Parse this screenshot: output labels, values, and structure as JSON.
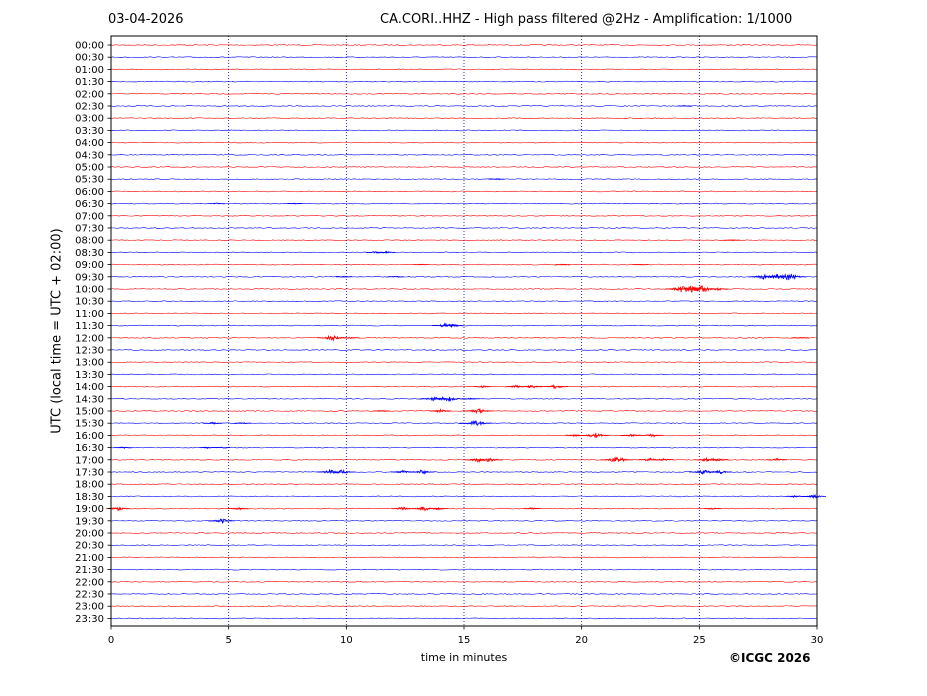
{
  "header": {
    "date": "03-04-2026",
    "title": "CA.CORI..HHZ - High pass filtered @2Hz - Amplification: 1/1000"
  },
  "footer": {
    "copyright": "©ICGC 2026"
  },
  "chart_data": {
    "type": "line",
    "title": "CA.CORI..HHZ - High pass filtered @2Hz - Amplification: 1/1000",
    "xlabel": "time in minutes",
    "ylabel": "UTC (local time = UTC + 02:00)",
    "xlim": [
      0,
      30
    ],
    "xticks": [
      0,
      5,
      10,
      15,
      20,
      25,
      30
    ],
    "grid_x": true,
    "trace_colors": [
      "#ff0000",
      "#0000ff"
    ],
    "rows": [
      "00:00",
      "00:30",
      "01:00",
      "01:30",
      "02:00",
      "02:30",
      "03:00",
      "03:30",
      "04:00",
      "04:30",
      "05:00",
      "05:30",
      "06:00",
      "06:30",
      "07:00",
      "07:30",
      "08:00",
      "08:30",
      "09:00",
      "09:30",
      "10:00",
      "10:30",
      "11:00",
      "11:30",
      "12:00",
      "12:30",
      "13:00",
      "13:30",
      "14:00",
      "14:30",
      "15:00",
      "15:30",
      "16:00",
      "16:30",
      "17:00",
      "17:30",
      "18:00",
      "18:30",
      "19:00",
      "19:30",
      "20:00",
      "20:30",
      "21:00",
      "21:30",
      "22:00",
      "22:30",
      "23:00",
      "23:30"
    ],
    "events": [
      {
        "row": "02:30",
        "minute": 24.4,
        "amp": 0.6
      },
      {
        "row": "05:30",
        "minute": 16.4,
        "amp": 0.8
      },
      {
        "row": "06:30",
        "minute": 4.5,
        "amp": 0.6
      },
      {
        "row": "06:30",
        "minute": 7.8,
        "amp": 0.6
      },
      {
        "row": "08:00",
        "minute": 26.4,
        "amp": 0.8
      },
      {
        "row": "08:30",
        "minute": 11.3,
        "amp": 1.5
      },
      {
        "row": "08:30",
        "minute": 11.7,
        "amp": 1.2
      },
      {
        "row": "09:00",
        "minute": 13.2,
        "amp": 0.6
      },
      {
        "row": "09:00",
        "minute": 19.2,
        "amp": 0.6
      },
      {
        "row": "09:00",
        "minute": 22.5,
        "amp": 0.6
      },
      {
        "row": "09:30",
        "minute": 9.9,
        "amp": 0.8
      },
      {
        "row": "09:30",
        "minute": 12.1,
        "amp": 0.8
      },
      {
        "row": "09:30",
        "minute": 27.8,
        "amp": 3.5
      },
      {
        "row": "09:30",
        "minute": 28.3,
        "amp": 3.0
      },
      {
        "row": "09:30",
        "minute": 28.8,
        "amp": 4.0
      },
      {
        "row": "10:00",
        "minute": 24.3,
        "amp": 4.0
      },
      {
        "row": "10:00",
        "minute": 24.7,
        "amp": 3.5
      },
      {
        "row": "10:00",
        "minute": 25.1,
        "amp": 4.0
      },
      {
        "row": "10:00",
        "minute": 25.8,
        "amp": 1.5
      },
      {
        "row": "11:30",
        "minute": 14.2,
        "amp": 2.5
      },
      {
        "row": "11:30",
        "minute": 14.5,
        "amp": 2.0
      },
      {
        "row": "12:00",
        "minute": 9.4,
        "amp": 3.0
      },
      {
        "row": "12:00",
        "minute": 10.2,
        "amp": 1.0
      },
      {
        "row": "12:00",
        "minute": 29.3,
        "amp": 1.0
      },
      {
        "row": "14:00",
        "minute": 15.8,
        "amp": 1.2
      },
      {
        "row": "14:00",
        "minute": 17.2,
        "amp": 1.5
      },
      {
        "row": "14:00",
        "minute": 17.9,
        "amp": 1.8
      },
      {
        "row": "14:00",
        "minute": 18.9,
        "amp": 2.2
      },
      {
        "row": "14:30",
        "minute": 13.7,
        "amp": 2.5
      },
      {
        "row": "14:30",
        "minute": 14.3,
        "amp": 3.5
      },
      {
        "row": "14:30",
        "minute": 15.3,
        "amp": 1.0
      },
      {
        "row": "15:00",
        "minute": 11.5,
        "amp": 1.0
      },
      {
        "row": "15:00",
        "minute": 14.0,
        "amp": 1.8
      },
      {
        "row": "15:00",
        "minute": 15.6,
        "amp": 3.0
      },
      {
        "row": "15:30",
        "minute": 4.3,
        "amp": 1.2
      },
      {
        "row": "15:30",
        "minute": 5.6,
        "amp": 0.8
      },
      {
        "row": "15:30",
        "minute": 15.5,
        "amp": 3.5
      },
      {
        "row": "16:00",
        "minute": 19.7,
        "amp": 1.2
      },
      {
        "row": "16:00",
        "minute": 20.6,
        "amp": 3.0
      },
      {
        "row": "16:00",
        "minute": 22.1,
        "amp": 1.5
      },
      {
        "row": "16:00",
        "minute": 23.0,
        "amp": 2.0
      },
      {
        "row": "16:30",
        "minute": 0.5,
        "amp": 1.0
      },
      {
        "row": "16:30",
        "minute": 4.1,
        "amp": 1.0
      },
      {
        "row": "16:30",
        "minute": 4.7,
        "amp": 0.8
      },
      {
        "row": "17:00",
        "minute": 15.6,
        "amp": 2.5
      },
      {
        "row": "17:00",
        "minute": 16.1,
        "amp": 2.5
      },
      {
        "row": "17:00",
        "minute": 21.5,
        "amp": 3.5
      },
      {
        "row": "17:00",
        "minute": 22.9,
        "amp": 2.0
      },
      {
        "row": "17:00",
        "minute": 23.5,
        "amp": 1.5
      },
      {
        "row": "17:00",
        "minute": 25.3,
        "amp": 2.0
      },
      {
        "row": "17:00",
        "minute": 25.7,
        "amp": 2.5
      },
      {
        "row": "17:00",
        "minute": 28.3,
        "amp": 1.5
      },
      {
        "row": "17:30",
        "minute": 9.3,
        "amp": 2.5
      },
      {
        "row": "17:30",
        "minute": 9.8,
        "amp": 2.5
      },
      {
        "row": "17:30",
        "minute": 12.4,
        "amp": 2.0
      },
      {
        "row": "17:30",
        "minute": 13.2,
        "amp": 2.5
      },
      {
        "row": "17:30",
        "minute": 25.2,
        "amp": 3.0
      },
      {
        "row": "17:30",
        "minute": 25.9,
        "amp": 2.0
      },
      {
        "row": "18:30",
        "minute": 29.1,
        "amp": 1.5
      },
      {
        "row": "18:30",
        "minute": 29.9,
        "amp": 2.0
      },
      {
        "row": "19:00",
        "minute": 0.3,
        "amp": 2.0
      },
      {
        "row": "19:00",
        "minute": 5.4,
        "amp": 1.5
      },
      {
        "row": "19:00",
        "minute": 12.4,
        "amp": 2.0
      },
      {
        "row": "19:00",
        "minute": 13.3,
        "amp": 2.5
      },
      {
        "row": "19:00",
        "minute": 13.9,
        "amp": 1.5
      },
      {
        "row": "19:00",
        "minute": 17.9,
        "amp": 1.2
      },
      {
        "row": "19:00",
        "minute": 25.6,
        "amp": 1.0
      },
      {
        "row": "19:30",
        "minute": 4.7,
        "amp": 2.5
      }
    ]
  }
}
